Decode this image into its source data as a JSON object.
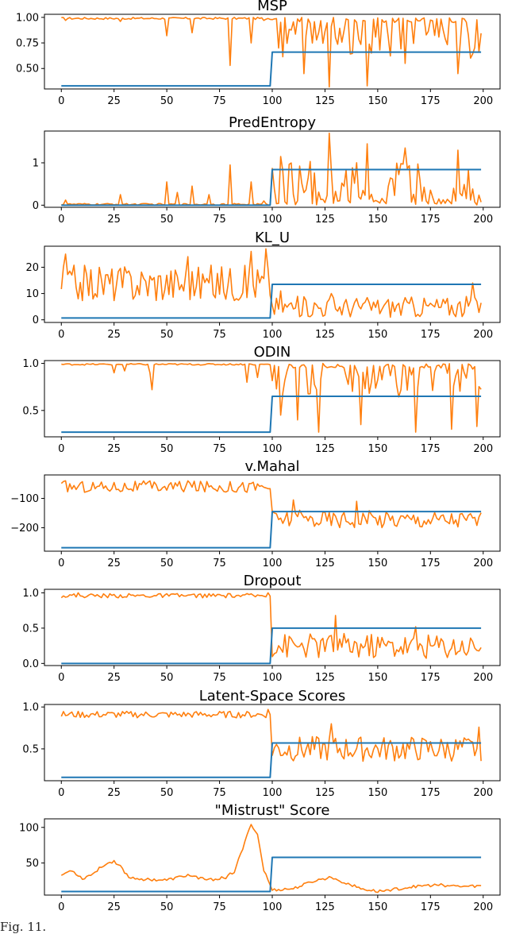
{
  "colors": {
    "score": "#ff7f0e",
    "label": "#1f77b4",
    "axis": "#000000"
  },
  "caption": "Fig. 11.",
  "chart_data": [
    {
      "type": "line",
      "title": "MSP",
      "xlim": [
        -8,
        208
      ],
      "ylim": [
        0.3,
        1.03
      ],
      "xticks": [
        0,
        25,
        50,
        75,
        100,
        125,
        150,
        175,
        200
      ],
      "yticks": [
        0.5,
        0.75,
        1.0
      ],
      "ytick_labels": [
        "0.50",
        "0.75",
        "1.00"
      ],
      "series": [
        {
          "role": "score",
          "pattern": "high_then_mixed",
          "n": 200,
          "base_before": 0.99,
          "noise_before": 0.01,
          "spikes_before": [
            [
              2,
              0.97
            ],
            [
              28,
              0.96
            ],
            [
              50,
              0.82
            ],
            [
              62,
              0.85
            ],
            [
              80,
              0.53
            ],
            [
              90,
              0.75
            ],
            [
              96,
              0.97
            ]
          ],
          "center_after": 0.8,
          "amp_after": 0.2,
          "min_after": 0.32,
          "max_after": 1.0,
          "drops_after": [
            [
              103,
              0.7
            ],
            [
              115,
              0.45
            ],
            [
              127,
              0.32
            ],
            [
              145,
              0.33
            ],
            [
              163,
              0.55
            ],
            [
              188,
              0.45
            ]
          ]
        },
        {
          "role": "label",
          "pattern": "step",
          "before": 0.33,
          "after": 0.66,
          "step_x": 100
        }
      ]
    },
    {
      "type": "line",
      "title": "PredEntropy",
      "xlim": [
        -8,
        208
      ],
      "ylim": [
        -0.05,
        1.75
      ],
      "xticks": [
        0,
        25,
        50,
        75,
        100,
        125,
        150,
        175,
        200
      ],
      "yticks": [
        0,
        1
      ],
      "ytick_labels": [
        "0",
        "1"
      ],
      "series": [
        {
          "role": "score",
          "pattern": "low_then_mixed",
          "n": 200,
          "base_before": 0.02,
          "noise_before": 0.02,
          "spikes_before": [
            [
              2,
              0.12
            ],
            [
              28,
              0.25
            ],
            [
              50,
              0.55
            ],
            [
              55,
              0.3
            ],
            [
              62,
              0.45
            ],
            [
              70,
              0.25
            ],
            [
              80,
              0.95
            ],
            [
              90,
              0.55
            ],
            [
              96,
              0.1
            ]
          ],
          "center_after": 0.55,
          "amp_after": 0.55,
          "min_after": 0.0,
          "max_after": 1.7,
          "peaks_after": [
            [
              104,
              1.15
            ],
            [
              127,
              1.7
            ],
            [
              145,
              1.45
            ],
            [
              163,
              1.35
            ],
            [
              188,
              1.3
            ]
          ]
        },
        {
          "role": "label",
          "pattern": "step",
          "before": 0.0,
          "after": 0.84,
          "step_x": 100
        }
      ]
    },
    {
      "type": "line",
      "title": "KL_U",
      "xlim": [
        -8,
        208
      ],
      "ylim": [
        -1,
        28
      ],
      "xticks": [
        0,
        25,
        50,
        75,
        100,
        125,
        150,
        175,
        200
      ],
      "yticks": [
        0,
        10,
        20
      ],
      "ytick_labels": [
        "0",
        "10",
        "20"
      ],
      "series": [
        {
          "role": "score",
          "pattern": "noisy_then_low",
          "n": 200,
          "center_before": 14,
          "amp_before": 7,
          "min_before": 3,
          "max_before": 27,
          "peaks_before": [
            [
              2,
              25
            ],
            [
              60,
              24
            ],
            [
              90,
              26
            ],
            [
              97,
              27
            ]
          ],
          "center_after": 5,
          "amp_after": 4,
          "min_after": 0.3,
          "max_after": 14,
          "peaks_after": [
            [
              104,
              11
            ],
            [
              128,
              10
            ],
            [
              195,
              14
            ]
          ]
        },
        {
          "role": "label",
          "pattern": "step",
          "before": 0.7,
          "after": 13.5,
          "step_x": 100
        }
      ]
    },
    {
      "type": "line",
      "title": "ODIN",
      "xlim": [
        -8,
        208
      ],
      "ylim": [
        0.22,
        1.03
      ],
      "xticks": [
        0,
        25,
        50,
        75,
        100,
        125,
        150,
        175,
        200
      ],
      "yticks": [
        0.5,
        1.0
      ],
      "ytick_labels": [
        "0.5",
        "1.0"
      ],
      "series": [
        {
          "role": "score",
          "pattern": "high_then_mixed",
          "n": 200,
          "base_before": 0.99,
          "noise_before": 0.008,
          "spikes_before": [
            [
              25,
              0.9
            ],
            [
              30,
              0.92
            ],
            [
              42,
              0.9
            ],
            [
              43,
              0.72
            ],
            [
              88,
              0.8
            ],
            [
              93,
              0.85
            ]
          ],
          "center_after": 0.82,
          "amp_after": 0.18,
          "min_after": 0.26,
          "max_after": 1.0,
          "drops_after": [
            [
              104,
              0.45
            ],
            [
              112,
              0.4
            ],
            [
              122,
              0.27
            ],
            [
              142,
              0.35
            ],
            [
              168,
              0.27
            ],
            [
              185,
              0.3
            ],
            [
              197,
              0.33
            ]
          ]
        },
        {
          "role": "label",
          "pattern": "step",
          "before": 0.27,
          "after": 0.65,
          "step_x": 100
        }
      ]
    },
    {
      "type": "line",
      "title": "v.Mahal",
      "xlim": [
        -8,
        208
      ],
      "ylim": [
        -280,
        -20
      ],
      "xticks": [
        0,
        25,
        50,
        75,
        100,
        125,
        150,
        175,
        200
      ],
      "yticks": [
        -200,
        -100
      ],
      "ytick_labels": [
        "−200",
        "−100"
      ],
      "series": [
        {
          "role": "score",
          "pattern": "noisy_then_low",
          "n": 200,
          "center_before": -60,
          "amp_before": 20,
          "min_before": -105,
          "max_before": -38,
          "peaks_before": [
            [
              2,
              -40
            ],
            [
              60,
              -40
            ]
          ],
          "center_after": -170,
          "amp_after": 30,
          "min_after": -270,
          "max_after": -100,
          "peaks_after": [
            [
              110,
              -105
            ],
            [
              140,
              -110
            ]
          ]
        },
        {
          "role": "label",
          "pattern": "step",
          "before": -268,
          "after": -145,
          "step_x": 100
        }
      ]
    },
    {
      "type": "line",
      "title": "Dropout",
      "xlim": [
        -8,
        208
      ],
      "ylim": [
        -0.03,
        1.05
      ],
      "xticks": [
        0,
        25,
        50,
        75,
        100,
        125,
        150,
        175,
        200
      ],
      "yticks": [
        0.0,
        0.5,
        1.0
      ],
      "ytick_labels": [
        "0.0",
        "0.5",
        "1.0"
      ],
      "series": [
        {
          "role": "score",
          "pattern": "noisy_then_low",
          "n": 200,
          "center_before": 0.96,
          "amp_before": 0.03,
          "min_before": 0.85,
          "max_before": 1.0,
          "peaks_before": [
            [
              8,
              1.0
            ],
            [
              98,
              1.0
            ]
          ],
          "center_after": 0.25,
          "amp_after": 0.18,
          "min_after": 0.02,
          "max_after": 0.68,
          "peaks_after": [
            [
              130,
              0.68
            ],
            [
              168,
              0.52
            ]
          ]
        },
        {
          "role": "label",
          "pattern": "step",
          "before": 0.0,
          "after": 0.5,
          "step_x": 100
        }
      ]
    },
    {
      "type": "line",
      "title": "Latent-Space Scores",
      "xlim": [
        -8,
        208
      ],
      "ylim": [
        0.12,
        1.03
      ],
      "xticks": [
        0,
        25,
        50,
        75,
        100,
        125,
        150,
        175,
        200
      ],
      "yticks": [
        0.5,
        1.0
      ],
      "ytick_labels": [
        "0.5",
        "1.0"
      ],
      "series": [
        {
          "role": "score",
          "pattern": "noisy_then_low",
          "n": 200,
          "center_before": 0.91,
          "amp_before": 0.04,
          "min_before": 0.78,
          "max_before": 0.98,
          "peaks_before": [
            [
              98,
              0.97
            ]
          ],
          "center_after": 0.5,
          "amp_after": 0.15,
          "min_after": 0.22,
          "max_after": 0.8,
          "peaks_after": [
            [
              128,
              0.8
            ],
            [
              198,
              0.76
            ]
          ]
        },
        {
          "role": "label",
          "pattern": "step",
          "before": 0.16,
          "after": 0.57,
          "step_x": 100
        }
      ]
    },
    {
      "type": "line",
      "title": "\"Mistrust\" Score",
      "xlim": [
        -8,
        208
      ],
      "ylim": [
        5,
        112
      ],
      "xticks": [
        0,
        25,
        50,
        75,
        100,
        125,
        150,
        175,
        200
      ],
      "yticks": [
        50,
        100
      ],
      "ytick_labels": [
        "50",
        "100"
      ],
      "series": [
        {
          "role": "score",
          "pattern": "smooth",
          "n": 200,
          "points": [
            [
              0,
              33
            ],
            [
              5,
              40
            ],
            [
              10,
              28
            ],
            [
              15,
              35
            ],
            [
              20,
              47
            ],
            [
              25,
              53
            ],
            [
              28,
              45
            ],
            [
              32,
              30
            ],
            [
              40,
              27
            ],
            [
              50,
              26
            ],
            [
              60,
              33
            ],
            [
              70,
              26
            ],
            [
              78,
              30
            ],
            [
              82,
              38
            ],
            [
              86,
              70
            ],
            [
              90,
              105
            ],
            [
              93,
              90
            ],
            [
              96,
              40
            ],
            [
              100,
              12
            ],
            [
              110,
              14
            ],
            [
              120,
              25
            ],
            [
              128,
              30
            ],
            [
              135,
              22
            ],
            [
              142,
              14
            ],
            [
              150,
              10
            ],
            [
              160,
              14
            ],
            [
              170,
              18
            ],
            [
              180,
              19
            ],
            [
              190,
              17
            ],
            [
              200,
              18
            ]
          ]
        },
        {
          "role": "label",
          "pattern": "step",
          "before": 10,
          "after": 58,
          "step_x": 100
        }
      ]
    }
  ]
}
